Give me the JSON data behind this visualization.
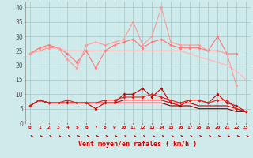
{
  "x": [
    0,
    1,
    2,
    3,
    4,
    5,
    6,
    7,
    8,
    9,
    10,
    11,
    12,
    13,
    14,
    15,
    16,
    17,
    18,
    19,
    20,
    21,
    22,
    23
  ],
  "line1": [
    24,
    25,
    26,
    26,
    22,
    19,
    27,
    28,
    27,
    28,
    29,
    35,
    27,
    30,
    40,
    28,
    27,
    27,
    27,
    25,
    25,
    24,
    13,
    null
  ],
  "line2": [
    24,
    26,
    26,
    26,
    25,
    25,
    25,
    25,
    25,
    25,
    25,
    25,
    25,
    25,
    25,
    25,
    25,
    24,
    23,
    22,
    21,
    20,
    18,
    15
  ],
  "line3": [
    24,
    26,
    27,
    26,
    24,
    21,
    25,
    19,
    25,
    27,
    28,
    29,
    26,
    28,
    29,
    27,
    26,
    26,
    26,
    25,
    30,
    24,
    24,
    null
  ],
  "line4": [
    6,
    8,
    7,
    7,
    7,
    7,
    7,
    5,
    7,
    7,
    10,
    10,
    12,
    9,
    12,
    7,
    6,
    8,
    8,
    7,
    10,
    7,
    6,
    4
  ],
  "line5": [
    6,
    8,
    7,
    7,
    7,
    7,
    7,
    7,
    7,
    7,
    8,
    8,
    8,
    8,
    8,
    7,
    7,
    7,
    6,
    6,
    6,
    6,
    5,
    4
  ],
  "line6": [
    6,
    8,
    7,
    7,
    7,
    7,
    7,
    7,
    7,
    7,
    7,
    7,
    7,
    7,
    7,
    6,
    6,
    6,
    5,
    5,
    5,
    5,
    4,
    4
  ],
  "line7": [
    6,
    8,
    7,
    7,
    8,
    7,
    7,
    7,
    8,
    8,
    9,
    9,
    9,
    10,
    9,
    8,
    7,
    8,
    8,
    7,
    8,
    8,
    5,
    4
  ],
  "background_color": "#ceeaea",
  "grid_color": "#aacccc",
  "line1_color": "#ff9999",
  "line2_color": "#ffbbbb",
  "line3_color": "#ff7777",
  "line4_color": "#cc0000",
  "line5_color": "#cc0000",
  "line6_color": "#880000",
  "line7_color": "#dd2222",
  "xlabel": "Vent moyen/en rafales ( km/h )",
  "ylabel_ticks": [
    0,
    5,
    10,
    15,
    20,
    25,
    30,
    35,
    40
  ],
  "xlim": [
    -0.5,
    23.5
  ],
  "ylim": [
    0,
    42
  ]
}
